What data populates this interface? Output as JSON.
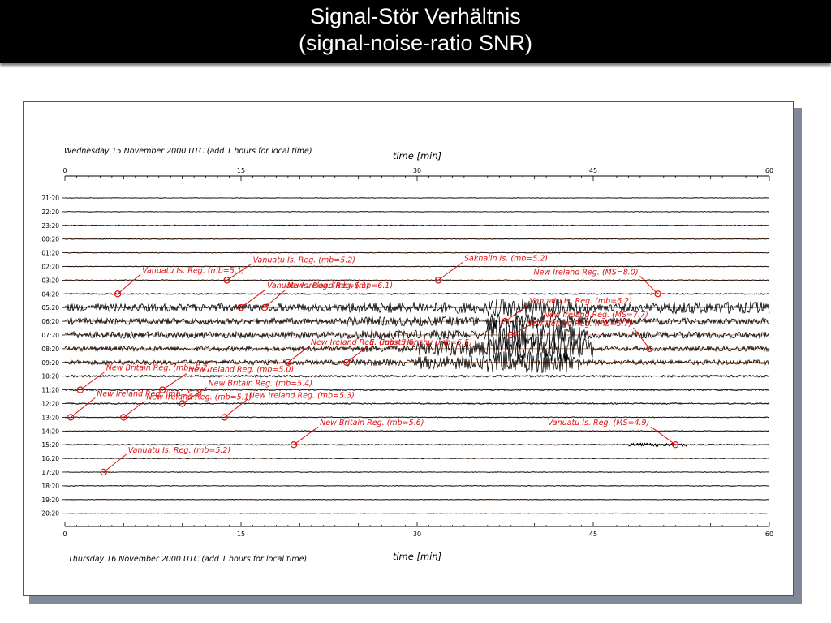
{
  "slide": {
    "title_line_1": "Signal-Stör Verhältnis",
    "title_line_2": "(signal-noise-ratio SNR)"
  },
  "chart_data": {
    "type": "line",
    "description_top": "Wednesday 15 November 2000 UTC (add 1 hours for local time)",
    "description_bottom": "Thursday 16 November 2000 UTC (add 1 hours for local time)",
    "xlabel": "time [min]",
    "xlim": [
      0,
      60
    ],
    "x_ticks": [
      0,
      15,
      30,
      45,
      60
    ],
    "rows": [
      "21:20",
      "22:20",
      "23:20",
      "00:20",
      "01:20",
      "02:20",
      "03:20",
      "04:20",
      "05:20",
      "06:20",
      "07:20",
      "08:20",
      "09:20",
      "10:20",
      "11:20",
      "12:20",
      "13:20",
      "14:20",
      "15:20",
      "16:20",
      "17:20",
      "18:20",
      "19:20",
      "20:20"
    ],
    "grid": true,
    "annotations": [
      {
        "label": "Vanuatu Is. Reg. (mb=5.1)",
        "row": "04:20",
        "minute": 4.5
      },
      {
        "label": "Vanuatu Is. Reg. (mb=5.2)",
        "row": "03:20",
        "minute": 13.8
      },
      {
        "label": "Vanuatu Is. Reg. (mb=6.1)",
        "row": "05:20",
        "minute": 15
      },
      {
        "label": "New Ireland Reg. (mb=6.1)",
        "row": "05:20",
        "minute": 17
      },
      {
        "label": "Sakhalin Is. (mb=5.2)",
        "row": "03:20",
        "minute": 31.8
      },
      {
        "label": "New Ireland Reg. (MS=8.0)",
        "row": "04:20",
        "minute": 50.5
      },
      {
        "label": "Vanuatu Is. Reg. (mb=6.2)",
        "row": "06:20",
        "minute": 37.5
      },
      {
        "label": "New Ireland Reg. (MS=7.7)",
        "row": "07:20",
        "minute": 38
      },
      {
        "label": "New Ireland Reg. (mb=5.7)",
        "row": "08:20",
        "minute": 49.8
      },
      {
        "label": "New Ireland Reg. (mb=5.6)",
        "row": "09:20",
        "minute": 19
      },
      {
        "label": "E. Coast Honshu (mb=5.5)",
        "row": "09:20",
        "minute": 24
      },
      {
        "label": "New Ireland Reg. (mb=5.0)",
        "row": "11:20",
        "minute": 8.3
      },
      {
        "label": "New Britain Reg. (mb=5.2)",
        "row": "11:20",
        "minute": 1.3
      },
      {
        "label": "New Britain Reg. (mb=5.4)",
        "row": "12:20",
        "minute": 10
      },
      {
        "label": "New Ireland Reg. (mb=5.3)",
        "row": "13:20",
        "minute": 0.5
      },
      {
        "label": "New Ireland Reg. (mb=5.1)",
        "row": "13:20",
        "minute": 5
      },
      {
        "label": "New Ireland Reg. (mb=5.3)",
        "row": "13:20",
        "minute": 13.6
      },
      {
        "label": "New Britain Reg. (mb=5.6)",
        "row": "15:20",
        "minute": 19.5
      },
      {
        "label": "Vanuatu Is. Reg. (MS=4.9)",
        "row": "15:20",
        "minute": 52
      },
      {
        "label": "Vanuatu Is. Reg. (mb=5.2)",
        "row": "17:20",
        "minute": 3.3
      }
    ],
    "colors": {
      "trace": "#000000",
      "grid_line": "#b06030",
      "annotation": "#e01010"
    }
  }
}
